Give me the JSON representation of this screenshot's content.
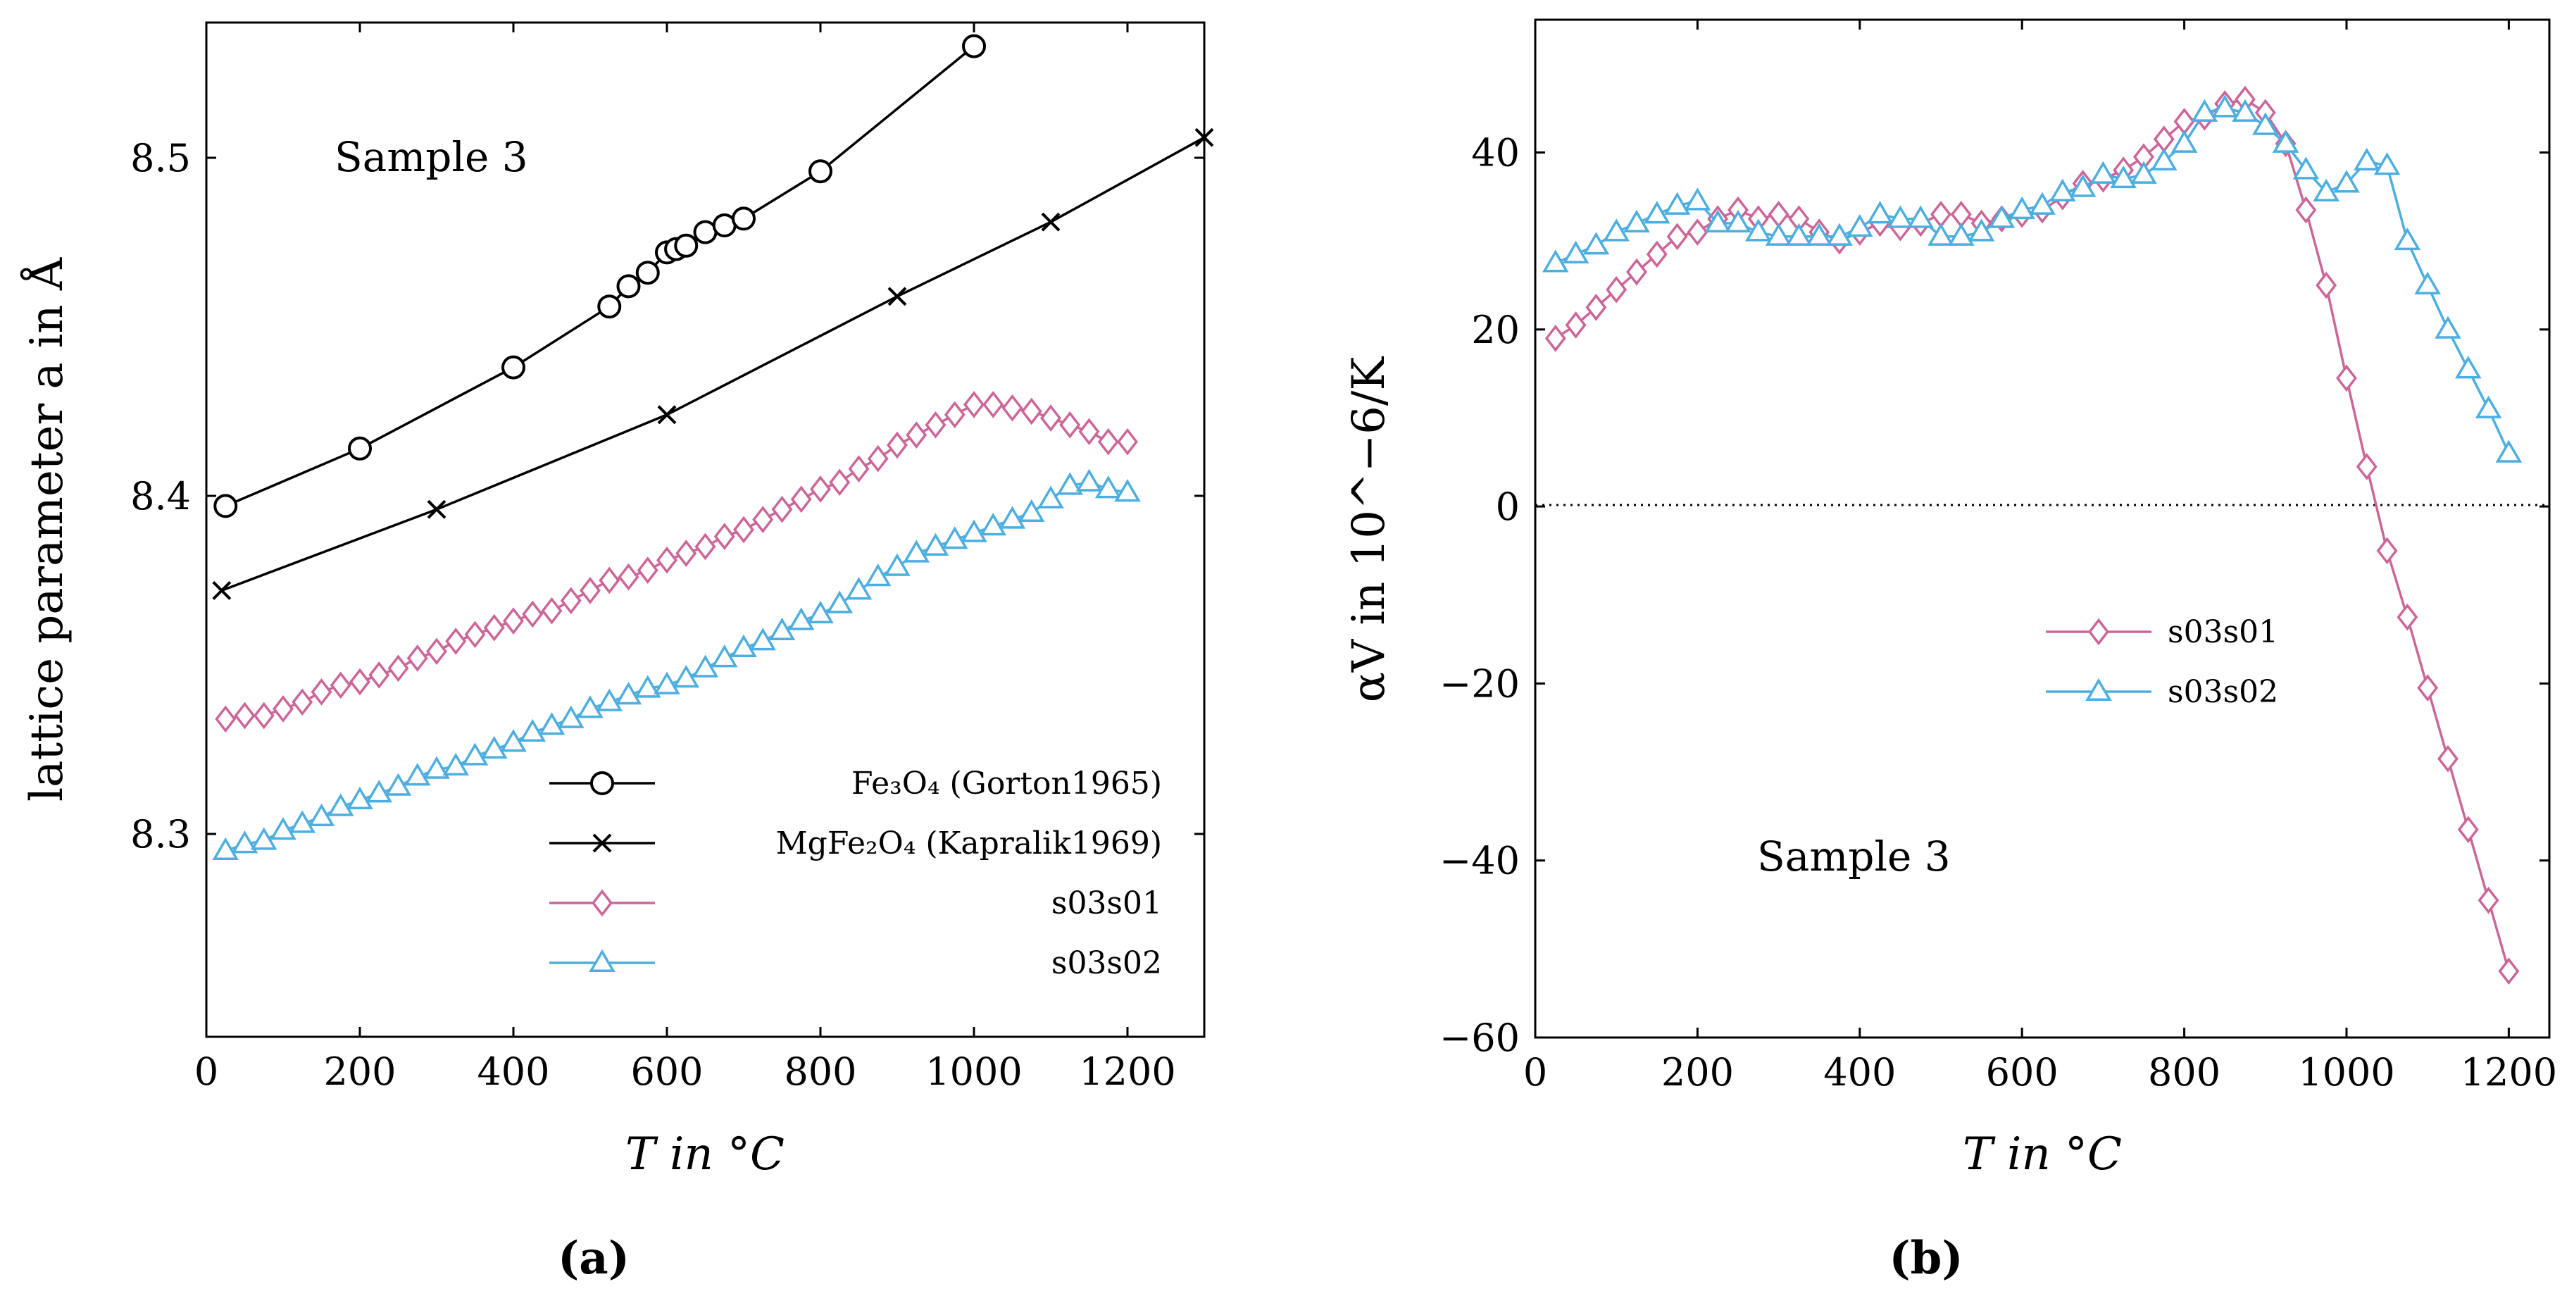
{
  "chart_data": [
    {
      "id": "a",
      "type": "line",
      "panel_label": "(a)",
      "xlabel": "T in °C",
      "ylabel": "lattice parameter a in Å",
      "xlim": [
        0,
        1300
      ],
      "ylim": [
        8.24,
        8.54
      ],
      "xticks": [
        0,
        200,
        400,
        600,
        800,
        1000,
        1200
      ],
      "yticks": [
        8.3,
        8.4,
        8.5
      ],
      "xtick_labels": [
        "0",
        "200",
        "400",
        "600",
        "800",
        "1000",
        "1200"
      ],
      "ytick_labels": [
        "8.3",
        "8.4",
        "8.5"
      ],
      "annotation": "Sample 3",
      "legend_position": "bottom-right",
      "series": [
        {
          "name": "Fe3O4 (Gorton1965)",
          "legend_label": "Fe₃O₄ (Gorton1965)",
          "marker": "circle",
          "color": "#000000",
          "x": [
            25,
            200,
            400,
            525,
            550,
            575,
            600,
            612,
            625,
            650,
            675,
            700,
            800,
            1000
          ],
          "y": [
            8.397,
            8.414,
            8.438,
            8.456,
            8.462,
            8.466,
            8.472,
            8.473,
            8.474,
            8.478,
            8.48,
            8.482,
            8.496,
            8.533
          ]
        },
        {
          "name": "MgFe2O4 (Kapralik1969)",
          "legend_label": "MgFe₂O₄ (Kapralik1969)",
          "marker": "cross",
          "color": "#000000",
          "x": [
            20,
            300,
            600,
            900,
            1100,
            1300
          ],
          "y": [
            8.372,
            8.396,
            8.424,
            8.459,
            8.481,
            8.506
          ]
        },
        {
          "name": "s03s01",
          "legend_label": "s03s01",
          "marker": "diamond",
          "color": "#CC6699",
          "x": [
            25,
            50,
            75,
            100,
            125,
            150,
            175,
            200,
            225,
            250,
            275,
            300,
            325,
            350,
            375,
            400,
            425,
            450,
            475,
            500,
            525,
            550,
            575,
            600,
            625,
            650,
            675,
            700,
            725,
            750,
            775,
            800,
            825,
            850,
            875,
            900,
            925,
            950,
            975,
            1000,
            1025,
            1050,
            1075,
            1100,
            1125,
            1150,
            1175,
            1200
          ],
          "y": [
            8.334,
            8.335,
            8.335,
            8.337,
            8.339,
            8.342,
            8.344,
            8.345,
            8.347,
            8.349,
            8.352,
            8.354,
            8.357,
            8.359,
            8.361,
            8.363,
            8.365,
            8.366,
            8.369,
            8.372,
            8.375,
            8.376,
            8.378,
            8.381,
            8.383,
            8.385,
            8.388,
            8.39,
            8.393,
            8.396,
            8.399,
            8.402,
            8.404,
            8.408,
            8.411,
            8.415,
            8.418,
            8.421,
            8.424,
            8.427,
            8.427,
            8.426,
            8.425,
            8.423,
            8.421,
            8.419,
            8.416,
            8.416
          ]
        },
        {
          "name": "s03s02",
          "legend_label": "s03s02",
          "marker": "triangle",
          "color": "#4DAEE0",
          "x": [
            25,
            50,
            75,
            100,
            125,
            150,
            175,
            200,
            225,
            250,
            275,
            300,
            325,
            350,
            375,
            400,
            425,
            450,
            475,
            500,
            525,
            550,
            575,
            600,
            625,
            650,
            675,
            700,
            725,
            750,
            775,
            800,
            825,
            850,
            875,
            900,
            925,
            950,
            975,
            1000,
            1025,
            1050,
            1075,
            1100,
            1125,
            1150,
            1175,
            1200
          ],
          "y": [
            8.295,
            8.297,
            8.298,
            8.301,
            8.303,
            8.305,
            8.308,
            8.31,
            8.312,
            8.314,
            8.317,
            8.319,
            8.32,
            8.323,
            8.325,
            8.327,
            8.33,
            8.332,
            8.334,
            8.337,
            8.339,
            8.341,
            8.343,
            8.344,
            8.346,
            8.349,
            8.352,
            8.355,
            8.357,
            8.36,
            8.363,
            8.365,
            8.368,
            8.372,
            8.376,
            8.379,
            8.383,
            8.385,
            8.387,
            8.389,
            8.391,
            8.393,
            8.395,
            8.399,
            8.403,
            8.404,
            8.402,
            8.401
          ]
        }
      ]
    },
    {
      "id": "b",
      "type": "line",
      "panel_label": "(b)",
      "xlabel": "T in °C",
      "ylabel": "αV in 10^−6/K",
      "xlim": [
        0,
        1250
      ],
      "ylim": [
        -60,
        55
      ],
      "xticks": [
        0,
        200,
        400,
        600,
        800,
        1000,
        1200
      ],
      "yticks": [
        -60,
        -40,
        -20,
        0,
        20,
        40
      ],
      "xtick_labels": [
        "0",
        "200",
        "400",
        "600",
        "800",
        "1000",
        "1200"
      ],
      "ytick_labels": [
        "−60",
        "−40",
        "−20",
        "0",
        "20",
        "40"
      ],
      "zero_line": true,
      "annotation": "Sample 3",
      "legend_position": "center",
      "series": [
        {
          "name": "s03s01",
          "legend_label": "s03s01",
          "marker": "diamond",
          "color": "#CC6699",
          "x": [
            25,
            50,
            75,
            100,
            125,
            150,
            175,
            200,
            225,
            250,
            275,
            300,
            325,
            350,
            375,
            400,
            425,
            450,
            475,
            500,
            525,
            550,
            575,
            600,
            625,
            650,
            675,
            700,
            725,
            750,
            775,
            800,
            825,
            850,
            875,
            900,
            925,
            950,
            975,
            1000,
            1025,
            1050,
            1075,
            1100,
            1125,
            1150,
            1175,
            1200
          ],
          "y": [
            19,
            20.5,
            22.5,
            24.5,
            26.5,
            28.5,
            30.5,
            31,
            32.5,
            33.5,
            32.5,
            33,
            32.5,
            31,
            30,
            31,
            32,
            31.5,
            32,
            33,
            33,
            32,
            32.5,
            33,
            33.5,
            35,
            36.5,
            37,
            38,
            39.5,
            41.5,
            43.5,
            44,
            45.5,
            46,
            44.5,
            41,
            33.5,
            25,
            14.5,
            4.5,
            -5,
            -12.5,
            -20.5,
            -28.5,
            -36.5,
            -44.5,
            -52.5
          ]
        },
        {
          "name": "s03s02",
          "legend_label": "s03s02",
          "marker": "triangle",
          "color": "#4DAEE0",
          "x": [
            25,
            50,
            75,
            100,
            125,
            150,
            175,
            200,
            225,
            250,
            275,
            300,
            325,
            350,
            375,
            400,
            425,
            450,
            475,
            500,
            525,
            550,
            575,
            600,
            625,
            650,
            675,
            700,
            725,
            750,
            775,
            800,
            825,
            850,
            875,
            900,
            925,
            950,
            975,
            1000,
            1025,
            1050,
            1075,
            1100,
            1125,
            1150,
            1175,
            1200
          ],
          "y": [
            27.5,
            28.5,
            29.5,
            31,
            32,
            33,
            34,
            34.5,
            32,
            32,
            31,
            30.5,
            30.5,
            30.5,
            30.5,
            31.5,
            33,
            32.5,
            32.5,
            30.5,
            30.5,
            31,
            32.5,
            33.5,
            34,
            35.5,
            36,
            37.5,
            37,
            37.5,
            39,
            41,
            44.5,
            45,
            44.5,
            43,
            41,
            38,
            35.5,
            36.5,
            39,
            38.5,
            30,
            25,
            20,
            15.5,
            11,
            6
          ]
        }
      ]
    }
  ]
}
